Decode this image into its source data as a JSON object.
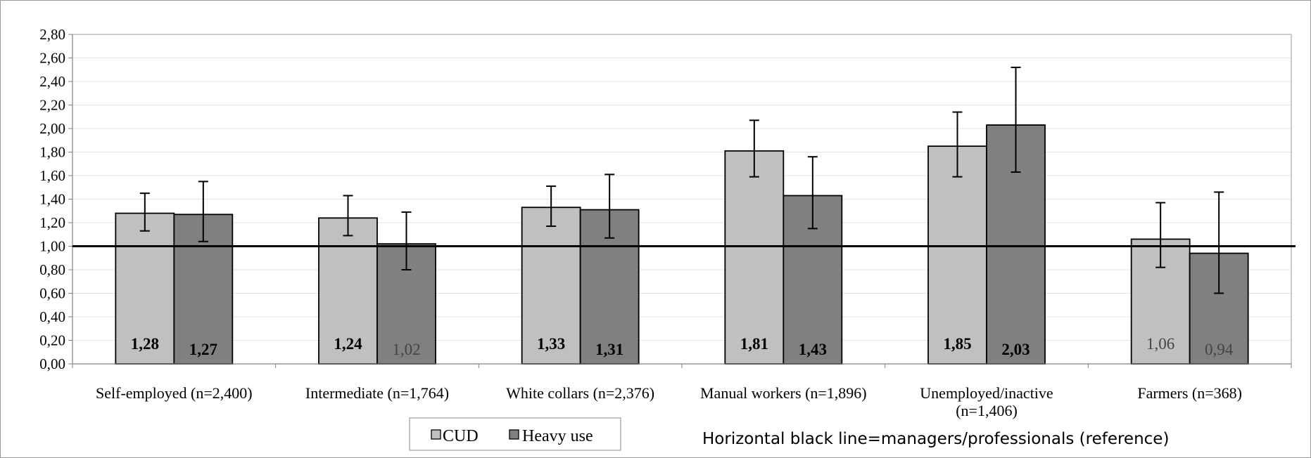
{
  "chart_data": {
    "type": "bar",
    "categories": [
      [
        "Self-employed (n=2,400)"
      ],
      [
        "Intermediate (n=1,764)"
      ],
      [
        "White collars (n=2,376)"
      ],
      [
        "Manual workers (n=1,896)"
      ],
      [
        "Unemployed/inactive",
        "(n=1,406)"
      ],
      [
        "Farmers (n=368)"
      ]
    ],
    "series": [
      {
        "name": "CUD",
        "color": "#c0c0c0",
        "values": [
          1.28,
          1.24,
          1.33,
          1.81,
          1.85,
          1.06
        ],
        "labels": [
          "1,28",
          "1,24",
          "1,33",
          "1,81",
          "1,85",
          "1,06"
        ],
        "bold": [
          true,
          true,
          true,
          true,
          true,
          false
        ],
        "ci_low": [
          1.13,
          1.09,
          1.17,
          1.59,
          1.59,
          0.82
        ],
        "ci_high": [
          1.45,
          1.43,
          1.51,
          2.07,
          2.14,
          1.37
        ]
      },
      {
        "name": "Heavy use",
        "color": "#808080",
        "values": [
          1.27,
          1.02,
          1.31,
          1.43,
          2.03,
          0.94
        ],
        "labels": [
          "1,27",
          "1,02",
          "1,31",
          "1,43",
          "2,03",
          "0,94"
        ],
        "bold": [
          true,
          false,
          true,
          true,
          true,
          false
        ],
        "ci_low": [
          1.04,
          0.8,
          1.07,
          1.15,
          1.63,
          0.6
        ],
        "ci_high": [
          1.55,
          1.29,
          1.61,
          1.76,
          2.52,
          1.46
        ]
      }
    ],
    "ylim": [
      0,
      2.8
    ],
    "ytick_step": 0.2,
    "ytick_labels": [
      "0,00",
      "0,20",
      "0,40",
      "0,60",
      "0,80",
      "1,00",
      "1,20",
      "1,40",
      "1,60",
      "1,80",
      "2,00",
      "2,20",
      "2,40",
      "2,60",
      "2,80"
    ],
    "reference_line": 1.0,
    "grid": true,
    "legend_position": "bottom-center",
    "title": "",
    "xlabel": "",
    "ylabel": "",
    "note": "Horizontal black line=managers/professionals (reference)"
  }
}
